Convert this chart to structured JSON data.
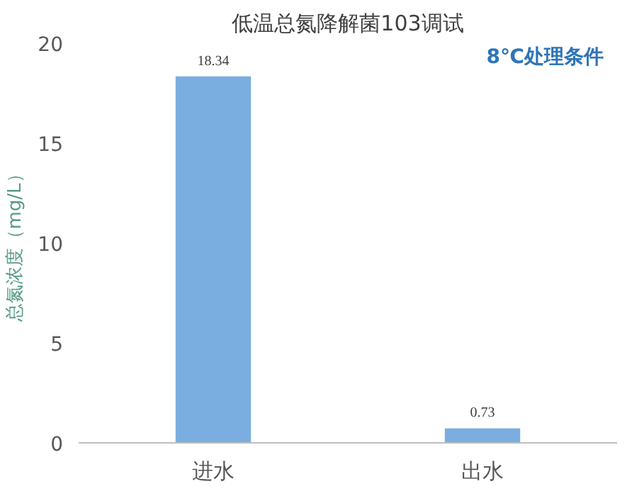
{
  "chart_data": {
    "type": "bar",
    "title": "低温总氮降解菌103调试",
    "ylabel": "总氮浓度（mg/L）",
    "categories": [
      "进水",
      "出水"
    ],
    "values": [
      18.34,
      0.73
    ],
    "color": "#7aaee0",
    "ylim": [
      0,
      20
    ],
    "yticks": [
      0,
      5,
      10,
      15,
      20
    ],
    "data_labels": true,
    "grid": false,
    "annotations": [
      "8℃处理条件"
    ]
  }
}
